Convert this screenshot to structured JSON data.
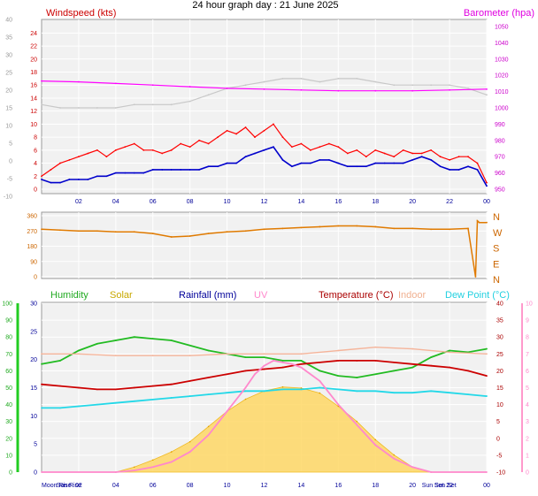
{
  "title": "24 hour graph day : 21 June 2025",
  "chart_data": [
    {
      "id": "wind",
      "type": "line",
      "title": "Windspeed (kts)",
      "right_title": "Barometer (hpa)",
      "x_ticks": [
        "02",
        "04",
        "06",
        "08",
        "10",
        "12",
        "14",
        "16",
        "18",
        "20",
        "22",
        "00"
      ],
      "x_range": [
        0,
        24
      ],
      "left_outer_ticks": [
        "40",
        "35",
        "30",
        "25",
        "20",
        "15",
        "10",
        "5",
        "0",
        "-5",
        "-10"
      ],
      "ylim": [
        0,
        25
      ],
      "y_ticks": [
        "24",
        "22",
        "20",
        "18",
        "16",
        "14",
        "12",
        "10",
        "8",
        "6",
        "4",
        "2",
        "0"
      ],
      "y2lim": [
        950,
        1050
      ],
      "y2_ticks": [
        "1050",
        "1040",
        "1030",
        "1020",
        "1010",
        "1000",
        "990",
        "980",
        "970",
        "960",
        "950"
      ],
      "series": [
        {
          "role": "gust",
          "color": "#ff0000",
          "x": [
            0,
            0.5,
            1,
            1.5,
            2,
            2.5,
            3,
            3.5,
            4,
            4.5,
            5,
            5.5,
            6,
            6.5,
            7,
            7.5,
            8,
            8.5,
            9,
            9.5,
            10,
            10.5,
            11,
            11.5,
            12,
            12.5,
            13,
            13.5,
            14,
            14.5,
            15,
            15.5,
            16,
            16.5,
            17,
            17.5,
            18,
            18.5,
            19,
            19.5,
            20,
            20.5,
            21,
            21.5,
            22,
            22.5,
            23,
            23.5,
            24
          ],
          "values": [
            2,
            3,
            4,
            4.5,
            5,
            5.5,
            6,
            5,
            6,
            6.5,
            7,
            6,
            6,
            5.5,
            6,
            7,
            6.5,
            7.5,
            7,
            8,
            9,
            8.5,
            9.5,
            8,
            9,
            10,
            8,
            6.5,
            7,
            6,
            6.5,
            7,
            6.5,
            5.5,
            6,
            5,
            6,
            5.5,
            5,
            6,
            5.5,
            5.5,
            6,
            5,
            4.5,
            5,
            5,
            4,
            1
          ]
        },
        {
          "role": "avg",
          "color": "#0000cc",
          "x": [
            0,
            0.5,
            1,
            1.5,
            2,
            2.5,
            3,
            3.5,
            4,
            4.5,
            5,
            5.5,
            6,
            6.5,
            7,
            7.5,
            8,
            8.5,
            9,
            9.5,
            10,
            10.5,
            11,
            11.5,
            12,
            12.5,
            13,
            13.5,
            14,
            14.5,
            15,
            15.5,
            16,
            16.5,
            17,
            17.5,
            18,
            18.5,
            19,
            19.5,
            20,
            20.5,
            21,
            21.5,
            22,
            22.5,
            23,
            23.5,
            24
          ],
          "values": [
            1.5,
            1,
            1,
            1.5,
            1.5,
            1.5,
            2,
            2,
            2.5,
            2.5,
            2.5,
            2.5,
            3,
            3,
            3,
            3,
            3,
            3,
            3.5,
            3.5,
            4,
            4,
            5,
            5.5,
            6,
            6.5,
            4.5,
            3.5,
            4,
            4,
            4.5,
            4.5,
            4,
            3.5,
            3.5,
            3.5,
            4,
            4,
            4,
            4,
            4.5,
            5,
            4.5,
            3.5,
            3,
            3,
            3.5,
            3,
            0.5
          ]
        },
        {
          "role": "gust-trace",
          "color": "#c8c8c8",
          "x": [
            0,
            1,
            2,
            3,
            4,
            5,
            6,
            7,
            8,
            9,
            10,
            11,
            12,
            13,
            14,
            15,
            16,
            17,
            18,
            19,
            20,
            21,
            22,
            23,
            24
          ],
          "values": [
            13,
            12.5,
            12.5,
            12.5,
            12.5,
            13,
            13,
            13,
            13.5,
            14.5,
            15.5,
            16,
            16.5,
            17,
            17,
            16.5,
            17,
            17,
            16.5,
            16,
            16,
            16,
            16,
            15.5,
            14.5
          ]
        },
        {
          "role": "barometer",
          "color": "#ff00ff",
          "axis": "right",
          "x": [
            0,
            2,
            4,
            6,
            8,
            10,
            12,
            14,
            16,
            18,
            20,
            22,
            24
          ],
          "values": [
            1016.5,
            1016,
            1015,
            1014,
            1013,
            1012,
            1011.5,
            1011,
            1010.5,
            1010.5,
            1010.5,
            1011,
            1011.5
          ]
        }
      ]
    },
    {
      "id": "direction",
      "type": "line",
      "x_ticks": [],
      "ylim": [
        0,
        360
      ],
      "y_ticks": [
        "360",
        "270",
        "180",
        "90",
        "0"
      ],
      "y2_ticks": [
        "N",
        "W",
        "S",
        "E",
        "N"
      ],
      "series": [
        {
          "role": "direction",
          "color": "#e07a00",
          "x": [
            0,
            1,
            2,
            3,
            4,
            5,
            6,
            7,
            8,
            9,
            10,
            11,
            12,
            13,
            14,
            15,
            16,
            17,
            18,
            19,
            20,
            21,
            22,
            23,
            23.4,
            23.5,
            23.6,
            24
          ],
          "values": [
            280,
            275,
            270,
            270,
            265,
            265,
            255,
            235,
            240,
            255,
            265,
            270,
            280,
            285,
            290,
            295,
            300,
            300,
            295,
            285,
            285,
            280,
            280,
            285,
            0,
            330,
            320,
            320
          ]
        }
      ]
    },
    {
      "id": "temperature",
      "type": "line",
      "headers": {
        "humidity": "Humidity",
        "solar": "Solar",
        "rainfall": "Rainfall (mm)",
        "uv": "UV",
        "temperature": "Temperature (°C)",
        "indoor": "Indoor",
        "dewpoint": "Dew Point (°C)"
      },
      "colors": {
        "humidity": "#22bb22",
        "solar": "#c8a800",
        "rainfall": "#000099",
        "uv": "#ff88cc",
        "temperature": "#cc0000",
        "indoor": "#f5b49a",
        "dewpoint": "#22d8e8"
      },
      "x_ticks": [
        "02",
        "04",
        "06",
        "08",
        "10",
        "12",
        "14",
        "16",
        "18",
        "20",
        "22",
        "00"
      ],
      "astro_labels": [
        {
          "text": "Moon Rise",
          "hour": 0.8
        },
        {
          "text": "Sun Rise",
          "hour": 0.8
        },
        {
          "text": "Sun Set",
          "hour": 21.1
        },
        {
          "text": "Sun Set",
          "hour": 21.1
        }
      ],
      "humidity_ticks": [
        "100",
        "90",
        "80",
        "70",
        "60",
        "50",
        "40",
        "30",
        "20",
        "10",
        "0"
      ],
      "rain_ticks": [
        "30",
        "25",
        "20",
        "15",
        "10",
        "5",
        "0"
      ],
      "temp_ticks": [
        "40",
        "35",
        "30",
        "25",
        "20",
        "15",
        "10",
        "5",
        "0",
        "-5",
        "-10"
      ],
      "uv_ticks": [
        "10",
        "9",
        "8",
        "7",
        "6",
        "5",
        "4",
        "3",
        "2",
        "1",
        "0"
      ],
      "ylim": [
        -10,
        40
      ],
      "series": [
        {
          "role": "humidity",
          "axis": "humidity",
          "color": "#22bb22",
          "x": [
            0,
            1,
            2,
            3,
            4,
            5,
            6,
            7,
            8,
            9,
            10,
            11,
            12,
            13,
            14,
            15,
            16,
            17,
            18,
            19,
            20,
            21,
            22,
            23,
            24
          ],
          "values": [
            64,
            66,
            72,
            76,
            78,
            80,
            79,
            78,
            75,
            72,
            70,
            68,
            68,
            66,
            66,
            60,
            57,
            56,
            58,
            60,
            62,
            68,
            72,
            71,
            73
          ]
        },
        {
          "role": "temperature",
          "axis": "temp",
          "color": "#cc0000",
          "x": [
            0,
            1,
            2,
            3,
            4,
            5,
            6,
            7,
            8,
            9,
            10,
            11,
            12,
            13,
            14,
            15,
            16,
            17,
            18,
            19,
            20,
            21,
            22,
            23,
            24
          ],
          "values": [
            16,
            15.5,
            15,
            14.5,
            14.5,
            15,
            15.5,
            16,
            17,
            18,
            19,
            20,
            20.5,
            21,
            22,
            22.5,
            23,
            23,
            23,
            22.5,
            22,
            21.5,
            21,
            20,
            18.5
          ]
        },
        {
          "role": "indoor",
          "axis": "temp",
          "color": "#f5b49a",
          "x": [
            0,
            2,
            4,
            6,
            8,
            10,
            12,
            14,
            16,
            18,
            20,
            22,
            24
          ],
          "values": [
            25,
            25,
            24.5,
            24.5,
            24.5,
            25,
            25,
            25,
            26,
            27,
            26.5,
            25.5,
            25
          ]
        },
        {
          "role": "dewpoint",
          "axis": "temp",
          "color": "#22d8e8",
          "x": [
            0,
            1,
            2,
            3,
            4,
            5,
            6,
            7,
            8,
            9,
            10,
            11,
            12,
            13,
            14,
            15,
            16,
            17,
            18,
            19,
            20,
            21,
            22,
            23,
            24
          ],
          "values": [
            9,
            9,
            9.5,
            10,
            10.5,
            11,
            11.5,
            12,
            12.5,
            13,
            13.5,
            14,
            14,
            14.5,
            14.5,
            15,
            14.5,
            14,
            14,
            13.5,
            13.5,
            14,
            13.5,
            13,
            12.5
          ]
        },
        {
          "role": "uv",
          "axis": "uv",
          "color": "#ff88cc",
          "x": [
            0,
            4,
            5,
            6,
            7,
            8,
            9,
            10,
            11,
            11.5,
            12,
            12.5,
            13,
            13.5,
            14,
            15,
            16,
            17,
            18,
            19,
            20,
            21,
            24
          ],
          "values": [
            0,
            0,
            0.1,
            0.3,
            0.6,
            1.2,
            2.2,
            3.6,
            5,
            5.8,
            6.3,
            6.6,
            6.5,
            6.4,
            6.2,
            5.4,
            4,
            2.8,
            1.6,
            0.8,
            0.3,
            0,
            0
          ]
        },
        {
          "role": "solar",
          "axis": "solar",
          "color": "#ffd866",
          "x": [
            4,
            5,
            6,
            7,
            8,
            9,
            10,
            11,
            12,
            13,
            14,
            15,
            16,
            17,
            18,
            19,
            20,
            21
          ],
          "values": [
            0,
            0.05,
            0.12,
            0.2,
            0.3,
            0.45,
            0.6,
            0.72,
            0.8,
            0.84,
            0.83,
            0.78,
            0.65,
            0.5,
            0.32,
            0.17,
            0.05,
            0
          ]
        }
      ]
    }
  ]
}
